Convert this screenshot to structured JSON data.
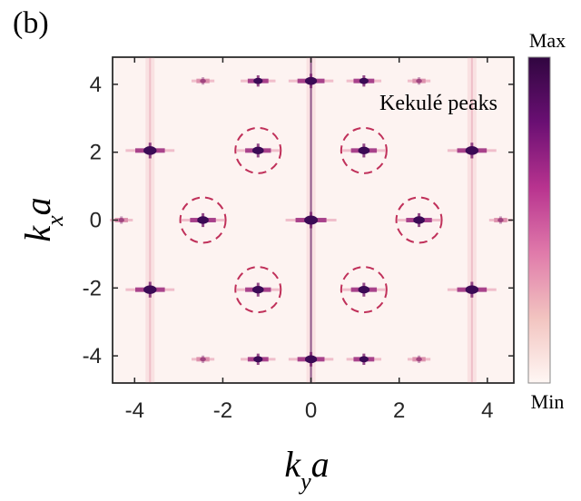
{
  "panel_label": "(b)",
  "colors": {
    "background": "#fdf3f1",
    "peak": "#3b0a55",
    "circle": "#c0305a"
  },
  "chart_data": {
    "type": "heatmap",
    "title": "",
    "xlabel": "k_y a",
    "ylabel": "k_x a",
    "xlim": [
      -4.5,
      4.6
    ],
    "ylim": [
      -4.8,
      4.8
    ],
    "xticks": [
      -4,
      -2,
      0,
      2,
      4
    ],
    "yticks": [
      -4,
      -2,
      0,
      2,
      4
    ],
    "xtick_labels": [
      "-4",
      "-2",
      "0",
      "2",
      "4"
    ],
    "ytick_labels": [
      "-4",
      "-2",
      "0",
      "2",
      "4"
    ],
    "grid": false,
    "colorbar": {
      "max_label": "Max",
      "min_label": "Min",
      "colormap": [
        "#fff7f4",
        "#f2c4c0",
        "#e07aaa",
        "#b8338f",
        "#6a0f73",
        "#300640"
      ]
    },
    "annotation": "Kekulé peaks",
    "peaks": [
      {
        "ky": 0,
        "kx": 4.1,
        "intensity": 0.85
      },
      {
        "ky": 0,
        "kx": -4.1,
        "intensity": 0.85
      },
      {
        "ky": 0,
        "kx": 0,
        "intensity": 1.0
      },
      {
        "ky": -1.2,
        "kx": 4.1,
        "intensity": 0.6
      },
      {
        "ky": 1.2,
        "kx": 4.1,
        "intensity": 0.6
      },
      {
        "ky": -1.2,
        "kx": -4.1,
        "intensity": 0.6
      },
      {
        "ky": 1.2,
        "kx": -4.1,
        "intensity": 0.6
      },
      {
        "ky": -3.65,
        "kx": 2.05,
        "intensity": 0.95
      },
      {
        "ky": 3.65,
        "kx": 2.05,
        "intensity": 0.95
      },
      {
        "ky": -3.65,
        "kx": -2.05,
        "intensity": 0.95
      },
      {
        "ky": 3.65,
        "kx": -2.05,
        "intensity": 0.95
      },
      {
        "ky": -1.2,
        "kx": 2.05,
        "intensity": 0.8
      },
      {
        "ky": 1.2,
        "kx": 2.05,
        "intensity": 0.8
      },
      {
        "ky": -1.2,
        "kx": -2.05,
        "intensity": 0.8
      },
      {
        "ky": 1.2,
        "kx": -2.05,
        "intensity": 0.8
      },
      {
        "ky": -2.45,
        "kx": 0,
        "intensity": 0.8
      },
      {
        "ky": 2.45,
        "kx": 0,
        "intensity": 0.8
      },
      {
        "ky": -2.45,
        "kx": 4.1,
        "intensity": 0.3
      },
      {
        "ky": 2.45,
        "kx": 4.1,
        "intensity": 0.3
      },
      {
        "ky": -2.45,
        "kx": -4.1,
        "intensity": 0.3
      },
      {
        "ky": 2.45,
        "kx": -4.1,
        "intensity": 0.3
      },
      {
        "ky": -4.3,
        "kx": 0,
        "intensity": 0.3
      },
      {
        "ky": 4.3,
        "kx": 0,
        "intensity": 0.3
      }
    ],
    "kekule_circles": [
      {
        "ky": -1.2,
        "kx": 2.05
      },
      {
        "ky": 1.2,
        "kx": 2.05
      },
      {
        "ky": -2.45,
        "kx": 0
      },
      {
        "ky": 2.45,
        "kx": 0
      },
      {
        "ky": -1.2,
        "kx": -2.05
      },
      {
        "ky": 1.2,
        "kx": -2.05
      }
    ],
    "vertical_streaks_ky": [
      -3.65,
      0,
      3.65
    ]
  }
}
